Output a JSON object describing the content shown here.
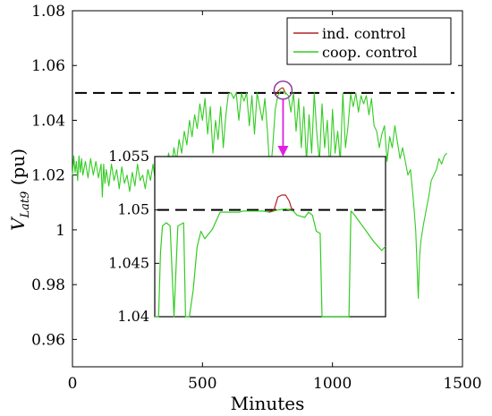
{
  "chart_data": [
    {
      "panel": "main",
      "type": "line",
      "xlabel": "Minutes",
      "ylabel_main": "V",
      "ylabel_sub": "Lat9",
      "ylabel_unit": "(pu)",
      "xlim": [
        0,
        1500
      ],
      "ylim": [
        0.95,
        1.08
      ],
      "xticks": [
        0,
        500,
        1000,
        1500
      ],
      "xtick_labels": [
        "0",
        "500",
        "1000",
        "1500"
      ],
      "yticks": [
        0.96,
        0.98,
        1.0,
        1.02,
        1.04,
        1.06,
        1.08
      ],
      "ytick_labels": [
        "0.96",
        "0.98",
        "1",
        "1.02",
        "1.04",
        "1.06",
        "1.08"
      ],
      "grid": false,
      "legend_position": "top-right",
      "reference_line": {
        "y": 1.05,
        "style": "dashed",
        "color": "#000000"
      },
      "highlight_circle": {
        "x": 810,
        "y": 1.051,
        "color": "#8a3f9a"
      },
      "series": [
        {
          "name": "ind. control",
          "color": "#b22222",
          "x": [
            780,
            790,
            800,
            805,
            810,
            815,
            820
          ],
          "y": [
            1.049,
            1.0505,
            1.0515,
            1.0518,
            1.0518,
            1.0508,
            1.0495
          ]
        },
        {
          "name": "coop. control",
          "color": "#33cc22",
          "x": [
            0,
            5,
            10,
            15,
            20,
            25,
            30,
            35,
            40,
            50,
            60,
            70,
            80,
            90,
            100,
            110,
            115,
            120,
            125,
            130,
            140,
            150,
            160,
            170,
            180,
            190,
            200,
            210,
            220,
            230,
            240,
            250,
            260,
            270,
            280,
            290,
            300,
            310,
            320,
            330,
            340,
            350,
            360,
            370,
            380,
            390,
            400,
            410,
            420,
            430,
            440,
            450,
            460,
            470,
            480,
            490,
            500,
            510,
            520,
            530,
            540,
            550,
            560,
            570,
            580,
            590,
            600,
            610,
            620,
            630,
            640,
            650,
            660,
            670,
            680,
            690,
            700,
            710,
            720,
            730,
            740,
            750,
            760,
            770,
            780,
            790,
            800,
            810,
            820,
            830,
            840,
            850,
            860,
            870,
            880,
            890,
            900,
            910,
            920,
            930,
            940,
            950,
            960,
            970,
            980,
            990,
            1000,
            1010,
            1020,
            1030,
            1040,
            1050,
            1060,
            1070,
            1080,
            1090,
            1100,
            1110,
            1120,
            1130,
            1140,
            1150,
            1160,
            1170,
            1180,
            1190,
            1200,
            1210,
            1220,
            1230,
            1240,
            1250,
            1260,
            1270,
            1280,
            1290,
            1300,
            1310,
            1320,
            1330,
            1335,
            1340,
            1350,
            1360,
            1370,
            1380,
            1390,
            1400,
            1410,
            1420,
            1430,
            1440
          ],
          "y": [
            1.02,
            1.027,
            1.021,
            1.025,
            1.018,
            1.027,
            1.021,
            1.026,
            1.02,
            1.025,
            1.019,
            1.026,
            1.02,
            1.025,
            1.019,
            1.024,
            1.012,
            1.024,
            1.017,
            1.022,
            1.016,
            1.024,
            1.018,
            1.022,
            1.015,
            1.023,
            1.017,
            1.02,
            1.014,
            1.021,
            1.016,
            1.024,
            1.018,
            1.02,
            1.015,
            1.022,
            1.018,
            1.024,
            1.017,
            1.021,
            1.026,
            1.019,
            1.023,
            1.028,
            1.022,
            1.03,
            1.025,
            1.033,
            1.028,
            1.036,
            1.031,
            1.04,
            1.034,
            1.042,
            1.037,
            1.046,
            1.04,
            1.048,
            1.035,
            1.045,
            1.028,
            1.04,
            1.033,
            1.045,
            1.03,
            1.042,
            1.0498,
            1.05,
            1.048,
            1.05,
            1.04,
            1.0498,
            1.047,
            1.05,
            1.038,
            1.049,
            1.035,
            1.05,
            1.045,
            1.04,
            1.048,
            1.036,
            1.02,
            1.03,
            1.044,
            1.049,
            1.0505,
            1.0505,
            1.05,
            1.049,
            1.043,
            1.05,
            1.036,
            1.048,
            1.03,
            1.045,
            1.025,
            1.042,
            1.028,
            1.05,
            1.035,
            1.025,
            1.046,
            1.03,
            1.04,
            1.021,
            1.044,
            1.028,
            1.036,
            1.025,
            1.05,
            1.03,
            1.038,
            1.0495,
            1.045,
            1.05,
            1.043,
            1.049,
            1.046,
            1.049,
            1.042,
            1.048,
            1.038,
            1.036,
            1.03,
            1.035,
            1.038,
            1.025,
            1.034,
            1.03,
            1.038,
            1.032,
            1.026,
            1.03,
            1.025,
            1.02,
            1.022,
            1.012,
            1.0,
            0.975,
            0.99,
            0.996,
            1.002,
            1.007,
            1.012,
            1.018,
            1.02,
            1.022,
            1.026,
            1.024,
            1.027,
            1.028
          ]
        }
      ]
    },
    {
      "panel": "inset",
      "type": "line",
      "xlim": [
        780,
        840
      ],
      "ylim": [
        1.04,
        1.055
      ],
      "yticks": [
        1.04,
        1.045,
        1.05,
        1.055
      ],
      "ytick_labels": [
        "1.04",
        "1.045",
        "1.05",
        "1.055"
      ],
      "reference_line": {
        "y": 1.05,
        "style": "dashed",
        "color": "#000000"
      },
      "arrow_color": "#e020e0",
      "series": [
        {
          "name": "ind. control",
          "color": "#b22222",
          "x": [
            809.5,
            810.5,
            811,
            812,
            813,
            814,
            815,
            815.5,
            816
          ],
          "y": [
            1.0498,
            1.0499,
            1.05,
            1.0512,
            1.0514,
            1.0514,
            1.0508,
            1.0502,
            1.05
          ]
        },
        {
          "name": "coop. control",
          "color": "#33cc22",
          "x": [
            780,
            781,
            781.5,
            782,
            783,
            784,
            785,
            786,
            787.5,
            788,
            789,
            790,
            791,
            792,
            793,
            795,
            797,
            798,
            799,
            800,
            802,
            803,
            804,
            806,
            808,
            810,
            812,
            814,
            815,
            816,
            817,
            818,
            819,
            820,
            821,
            822,
            823,
            823.5,
            824,
            825,
            826,
            827,
            829,
            830.5,
            831,
            832,
            833,
            834,
            835,
            836,
            837,
            838,
            839,
            840
          ],
          "y": [
            1.04,
            1.04,
            1.046,
            1.0485,
            1.0488,
            1.0485,
            1.04,
            1.0485,
            1.0488,
            1.04,
            1.04,
            1.0425,
            1.0465,
            1.048,
            1.0473,
            1.0482,
            1.0498,
            1.0498,
            1.0498,
            1.0498,
            1.0498,
            1.0499,
            1.0499,
            1.0499,
            1.0499,
            1.0498,
            1.05,
            1.0501,
            1.05,
            1.0499,
            1.0495,
            1.0494,
            1.0493,
            1.0498,
            1.0495,
            1.048,
            1.0478,
            1.04,
            1.04,
            1.04,
            1.04,
            1.04,
            1.04,
            1.04,
            1.0499,
            1.0495,
            1.049,
            1.0485,
            1.048,
            1.0475,
            1.047,
            1.0466,
            1.0462,
            1.0466
          ]
        }
      ]
    }
  ]
}
